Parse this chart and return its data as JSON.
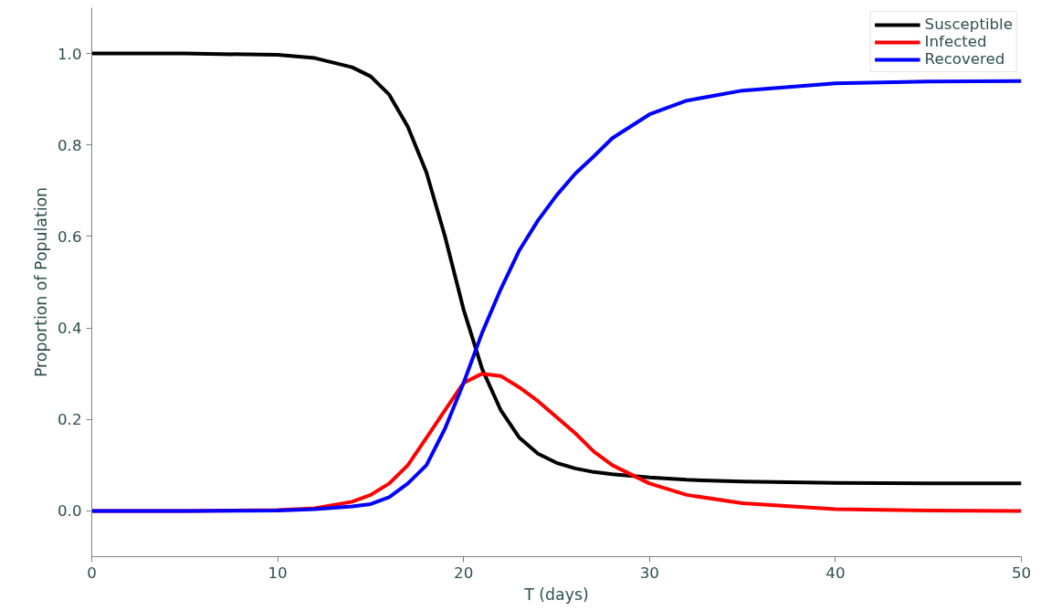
{
  "chart_data": {
    "type": "line",
    "xlabel": "T (days)",
    "ylabel": "Proportion of Population",
    "x": [
      0,
      5,
      10,
      12,
      14,
      15,
      16,
      17,
      18,
      19,
      20,
      21,
      22,
      23,
      24,
      25,
      26,
      27,
      28,
      30,
      32,
      35,
      40,
      45,
      50
    ],
    "series": [
      {
        "name": "Susceptible",
        "color": "#000000",
        "values": [
          1.0,
          1.0,
          0.997,
          0.99,
          0.97,
          0.95,
          0.91,
          0.84,
          0.74,
          0.6,
          0.44,
          0.31,
          0.22,
          0.16,
          0.125,
          0.105,
          0.093,
          0.085,
          0.08,
          0.073,
          0.068,
          0.064,
          0.061,
          0.06,
          0.06
        ]
      },
      {
        "name": "Infected",
        "color": "#ff0000",
        "values": [
          0.0,
          0.0,
          0.002,
          0.006,
          0.02,
          0.035,
          0.06,
          0.1,
          0.16,
          0.22,
          0.28,
          0.3,
          0.295,
          0.27,
          0.24,
          0.205,
          0.17,
          0.13,
          0.1,
          0.06,
          0.035,
          0.017,
          0.004,
          0.001,
          0.0
        ]
      },
      {
        "name": "Recovered",
        "color": "#0000ff",
        "values": [
          0.0,
          0.0,
          0.001,
          0.004,
          0.01,
          0.015,
          0.03,
          0.06,
          0.1,
          0.18,
          0.28,
          0.39,
          0.485,
          0.57,
          0.635,
          0.69,
          0.737,
          0.775,
          0.815,
          0.867,
          0.897,
          0.919,
          0.935,
          0.939,
          0.94
        ]
      }
    ],
    "xlim": [
      0,
      50
    ],
    "ylim": [
      -0.1,
      1.1
    ],
    "xticks": [
      0,
      10,
      20,
      30,
      40,
      50
    ],
    "yticks": [
      {
        "value": 0,
        "label": "0.0"
      },
      {
        "value": 0.2,
        "label": "0.2"
      },
      {
        "value": 0.4,
        "label": "0.4"
      },
      {
        "value": 0.6,
        "label": "0.6"
      },
      {
        "value": 0.8,
        "label": "0.8"
      },
      {
        "value": 1.0,
        "label": "1.0"
      }
    ],
    "grid": false,
    "legend": "top right",
    "line_style": "solid",
    "marker": "none"
  }
}
